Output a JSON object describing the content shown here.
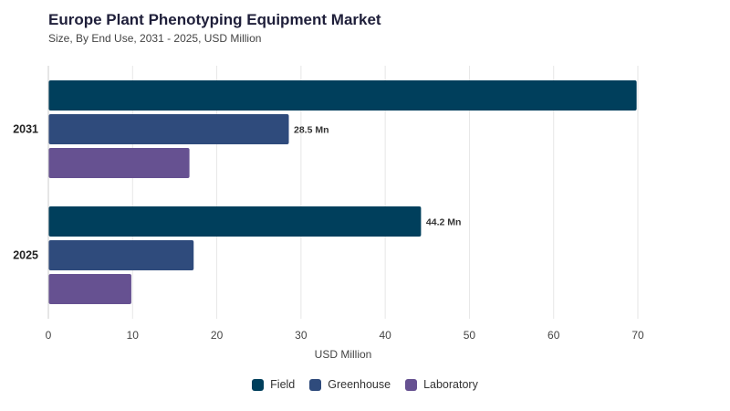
{
  "header": {
    "title": "Europe Plant Phenotyping Equipment Market",
    "subtitle": "Size, By End Use, 2031 - 2025, USD Million"
  },
  "chart_data": {
    "type": "bar",
    "orientation": "horizontal",
    "categories": [
      "2031",
      "2025"
    ],
    "series": [
      {
        "name": "Field",
        "color": "#003f5c",
        "values": [
          69.8,
          44.2
        ]
      },
      {
        "name": "Greenhouse",
        "color": "#2f4b7c",
        "values": [
          28.5,
          17.2
        ]
      },
      {
        "name": "Laboratory",
        "color": "#665191",
        "values": [
          16.7,
          9.8
        ]
      }
    ],
    "data_labels": [
      {
        "category": "2031",
        "series": "Greenhouse",
        "text": "28.5 Mn"
      },
      {
        "category": "2025",
        "series": "Field",
        "text": "44.2 Mn"
      }
    ],
    "xlabel": "USD Million",
    "ylabel": "",
    "xlim": [
      0,
      70
    ],
    "xticks": [
      0,
      10,
      20,
      30,
      40,
      50,
      60,
      70
    ],
    "grid": true,
    "legend_position": "bottom"
  }
}
